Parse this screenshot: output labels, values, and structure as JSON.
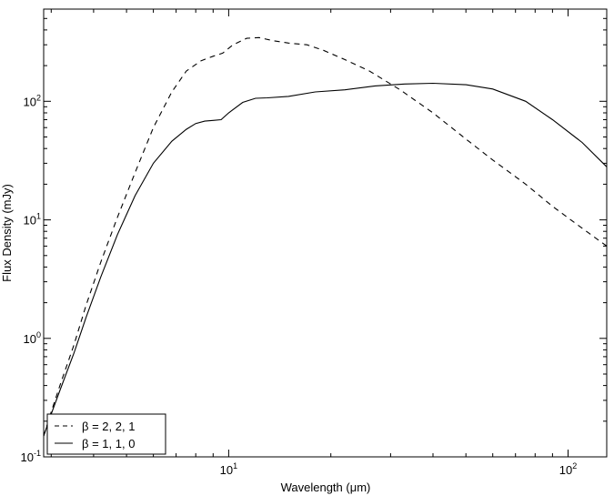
{
  "chart_data": {
    "type": "line",
    "xlabel": "Wavelength (μm)",
    "ylabel": "Flux Density (mJy)",
    "x_scale": "log",
    "y_scale": "log",
    "xlim": [
      2.85,
      130
    ],
    "ylim": [
      0.1,
      600
    ],
    "x_ticks": [
      {
        "base": "10",
        "exp": "1",
        "value": 10
      },
      {
        "base": "10",
        "exp": "2",
        "value": 100
      }
    ],
    "y_ticks": [
      {
        "base": "10",
        "exp": "-1",
        "value": 0.1
      },
      {
        "base": "10",
        "exp": "0",
        "value": 1
      },
      {
        "base": "10",
        "exp": "1",
        "value": 10
      },
      {
        "base": "10",
        "exp": "2",
        "value": 100
      }
    ],
    "grid": false,
    "legend_position": "bottom-left",
    "series": [
      {
        "name": "β = 2, 2, 1",
        "style": "dashed",
        "x": [
          2.85,
          3.0,
          3.2,
          3.5,
          3.8,
          4.2,
          4.7,
          5.3,
          6.0,
          6.8,
          7.5,
          8.3,
          9.0,
          9.6,
          10.3,
          11.3,
          12.3,
          13.5,
          15.0,
          17.0,
          19.0,
          22.0,
          26.0,
          32.0,
          40.0,
          50.0,
          60.0,
          75.0,
          90.0,
          110.0,
          130.0
        ],
        "y": [
          0.15,
          0.24,
          0.42,
          0.88,
          1.9,
          4.4,
          10.5,
          25.0,
          60.0,
          120.0,
          180.0,
          220.0,
          240.0,
          255.0,
          300.0,
          340.0,
          345.0,
          325.0,
          310.0,
          300.0,
          270.0,
          225.0,
          180.0,
          125.0,
          80.0,
          48.0,
          32.0,
          20.0,
          13.0,
          8.5,
          6.0
        ]
      },
      {
        "name": "β = 1, 1, 0",
        "style": "solid",
        "x": [
          2.85,
          3.0,
          3.2,
          3.5,
          3.8,
          4.2,
          4.7,
          5.3,
          6.0,
          6.8,
          7.5,
          8.0,
          8.5,
          9.0,
          9.5,
          10.0,
          11.0,
          12.0,
          13.0,
          15.0,
          18.0,
          22.0,
          27.0,
          33.0,
          40.0,
          50.0,
          60.0,
          75.0,
          90.0,
          110.0,
          130.0
        ],
        "y": [
          0.15,
          0.23,
          0.38,
          0.75,
          1.5,
          3.3,
          7.5,
          16.0,
          30.0,
          46.0,
          58.0,
          65.0,
          68.0,
          69.0,
          70.0,
          80.0,
          98.0,
          106.0,
          107.0,
          110.0,
          120.0,
          125.0,
          135.0,
          140.0,
          142.0,
          138.0,
          127.0,
          100.0,
          70.0,
          45.0,
          28.0
        ]
      }
    ]
  }
}
